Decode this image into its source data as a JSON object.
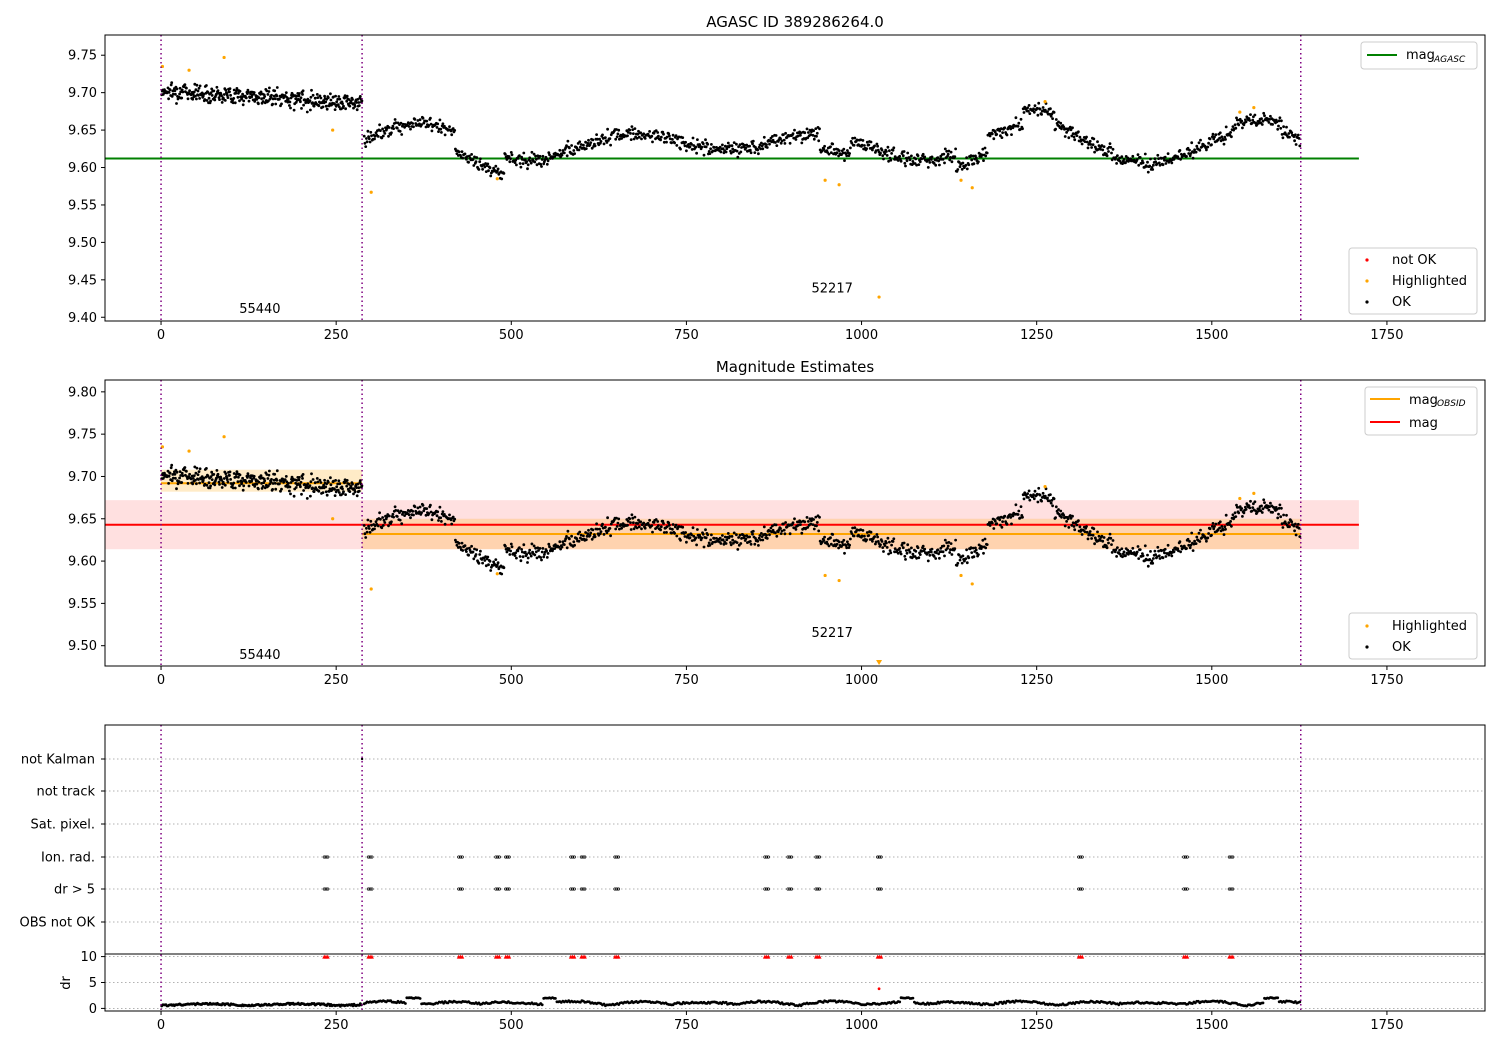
{
  "panel1": {
    "title": "AGASC ID 389286264.0",
    "yticks": [
      "9.75",
      "9.70",
      "9.65",
      "9.60",
      "9.55",
      "9.50",
      "9.45",
      "9.40"
    ],
    "xticks": [
      "0",
      "250",
      "500",
      "750",
      "1000",
      "1250",
      "1500",
      "1750"
    ],
    "obsid_labels": [
      "55440",
      "52217"
    ],
    "legend_line": {
      "base": "mag",
      "sub": "AGASC"
    },
    "legend_points": [
      "not OK",
      "Highlighted",
      "OK"
    ]
  },
  "panel2": {
    "title": "Magnitude Estimates",
    "yticks": [
      "9.80",
      "9.75",
      "9.70",
      "9.65",
      "9.60",
      "9.55",
      "9.50"
    ],
    "xticks": [
      "0",
      "250",
      "500",
      "750",
      "1000",
      "1250",
      "1500",
      "1750"
    ],
    "obsid_labels": [
      "55440",
      "52217"
    ],
    "legend_line1": {
      "base": "mag",
      "sub": "OBSID"
    },
    "legend_line2": "mag",
    "legend_points": [
      "Highlighted",
      "OK"
    ]
  },
  "panel3": {
    "flag_labels": [
      "not Kalman",
      "not track",
      "Sat. pixel.",
      "Ion. rad.",
      "dr > 5",
      "OBS not OK"
    ],
    "dr_label": "dr",
    "dr_ticks": [
      "10",
      "5",
      "0"
    ],
    "xticks": [
      "0",
      "250",
      "500",
      "750",
      "1000",
      "1250",
      "1500",
      "1750"
    ]
  },
  "chart_data": [
    {
      "type": "scatter",
      "title": "AGASC ID 389286264.0",
      "xlim": [
        -80,
        1890
      ],
      "ylim": [
        9.395,
        9.777
      ],
      "hlines": [
        {
          "name": "mag_AGASC",
          "y": 9.612,
          "x": [
            -80,
            1710
          ],
          "color": "#008000"
        }
      ],
      "vlines": {
        "x": [
          0,
          287,
          1627
        ],
        "color": "#800080",
        "style": "dotted"
      },
      "obsid_annotations": [
        {
          "label": "55440",
          "x": 143,
          "y": 9.406
        },
        {
          "label": "52217",
          "x": 960,
          "y": 9.433
        }
      ],
      "segments": [
        {
          "x": [
            0,
            287
          ],
          "mean": 9.695,
          "trend": 0.0,
          "noise": 0.011
        },
        {
          "x": [
            287,
            1627
          ],
          "mean": 9.632,
          "wave_amplitude": 0.02,
          "noise": 0.009
        }
      ],
      "highlighted_points": [
        {
          "x": 2,
          "y": 9.735
        },
        {
          "x": 40,
          "y": 9.73
        },
        {
          "x": 90,
          "y": 9.747
        },
        {
          "x": 245,
          "y": 9.65
        },
        {
          "x": 300,
          "y": 9.567
        },
        {
          "x": 480,
          "y": 9.585
        },
        {
          "x": 948,
          "y": 9.583
        },
        {
          "x": 968,
          "y": 9.577
        },
        {
          "x": 1025,
          "y": 9.427
        },
        {
          "x": 1142,
          "y": 9.583
        },
        {
          "x": 1158,
          "y": 9.573
        },
        {
          "x": 1262,
          "y": 9.688
        },
        {
          "x": 1540,
          "y": 9.674
        },
        {
          "x": 1560,
          "y": 9.68
        }
      ],
      "series": [
        {
          "name": "not OK",
          "color": "#ff0000"
        },
        {
          "name": "Highlighted",
          "color": "#ffa500"
        },
        {
          "name": "OK",
          "color": "#000000"
        }
      ],
      "legend": "top-right / bottom-right"
    },
    {
      "type": "scatter",
      "title": "Magnitude Estimates",
      "xlim": [
        -80,
        1890
      ],
      "ylim": [
        9.476,
        9.814
      ],
      "hlines": [
        {
          "name": "mag_OBSID",
          "y": 9.692,
          "x": [
            0,
            287
          ],
          "color": "#ffa500",
          "band": [
            9.682,
            9.708
          ]
        },
        {
          "name": "mag_OBSID",
          "y": 9.632,
          "x": [
            287,
            1627
          ],
          "color": "#ffa500",
          "band": [
            9.614,
            9.65
          ]
        },
        {
          "name": "mag",
          "y": 9.643,
          "x": [
            -80,
            1710
          ],
          "color": "#ff0000",
          "band": [
            9.614,
            9.672
          ]
        }
      ],
      "vlines": {
        "x": [
          0,
          287,
          1627
        ],
        "color": "#800080",
        "style": "dotted"
      },
      "obsid_annotations": [
        {
          "label": "55440",
          "x": 143,
          "y": 9.484
        },
        {
          "label": "52217",
          "x": 960,
          "y": 9.51
        }
      ],
      "series": [
        {
          "name": "Highlighted",
          "color": "#ffa500"
        },
        {
          "name": "OK",
          "color": "#000000"
        }
      ],
      "legend": "top-right / bottom-right"
    },
    {
      "type": "scatter",
      "xlim": [
        -80,
        1890
      ],
      "flag_rows": [
        "not Kalman",
        "not track",
        "Sat. pixel.",
        "Ion. rad.",
        "dr > 5",
        "OBS not OK"
      ],
      "flag_x": [
        233,
        296,
        425,
        478,
        492,
        585,
        600,
        648,
        862,
        895,
        935,
        1023,
        1310,
        1460,
        1525
      ],
      "flag_rows_marked": [
        "Ion. rad.",
        "dr > 5"
      ],
      "dr": {
        "ylim": [
          -0.5,
          10.5
        ],
        "ticks": [
          0,
          5,
          10
        ],
        "typical": [
          0.2,
          1.8
        ],
        "outlier": {
          "x": 1025,
          "y": 3.8
        },
        "clipped_value": 10
      }
    }
  ],
  "colors": {
    "ok": "#000000",
    "highlighted": "#ffa500",
    "not_ok": "#ff0000",
    "agasc_line": "#008000",
    "mag_line": "#ff0000",
    "obsid_line": "#ffa500",
    "obsid_vline": "#800080"
  }
}
